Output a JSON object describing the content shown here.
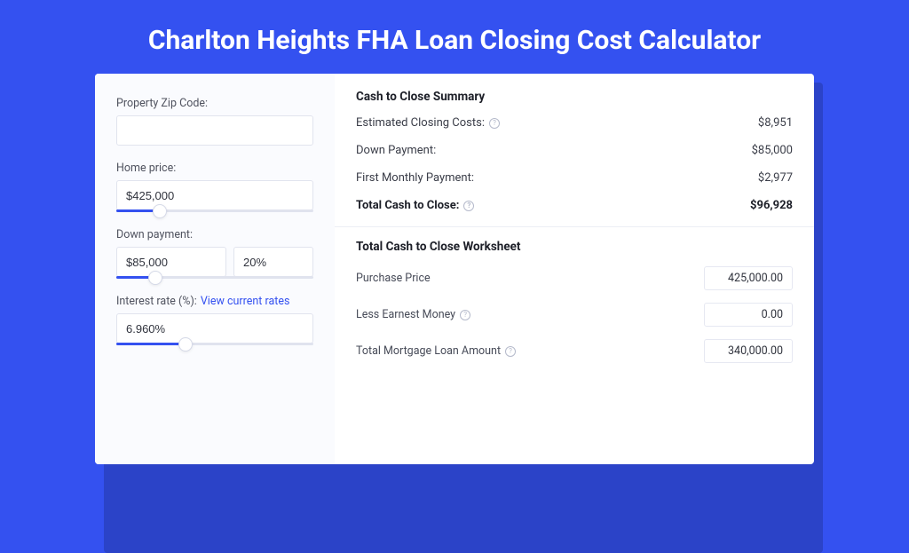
{
  "colors": {
    "page_bg": "#3451f0",
    "shadow_bg": "#2b43c8",
    "card_bg": "#ffffff",
    "left_bg": "#fafbfe",
    "border": "#e1e4ee",
    "slider_track": "#e0e3ee",
    "slider_fill": "#3451f0",
    "text_primary": "#1d1f28",
    "text_secondary": "#50535f",
    "link": "#3451f0"
  },
  "title": "Charlton Heights FHA Loan Closing Cost Calculator",
  "form": {
    "zip": {
      "label": "Property Zip Code:",
      "value": ""
    },
    "homePrice": {
      "label": "Home price:",
      "value": "$425,000",
      "slider_pct": 22
    },
    "downPayment": {
      "label": "Down payment:",
      "value": "$85,000",
      "pct": "20%",
      "slider_pct": 20
    },
    "interest": {
      "label": "Interest rate (%):",
      "link": "View current rates",
      "value": "6.960%",
      "slider_pct": 35
    }
  },
  "summary": {
    "title": "Cash to Close Summary",
    "rows": [
      {
        "label": "Estimated Closing Costs:",
        "value": "$8,951",
        "info": true
      },
      {
        "label": "Down Payment:",
        "value": "$85,000",
        "info": false
      },
      {
        "label": "First Monthly Payment:",
        "value": "$2,977",
        "info": false
      }
    ],
    "total": {
      "label": "Total Cash to Close:",
      "value": "$96,928",
      "info": true
    }
  },
  "worksheet": {
    "title": "Total Cash to Close Worksheet",
    "rows": [
      {
        "label": "Purchase Price",
        "value": "425,000.00",
        "info": false
      },
      {
        "label": "Less Earnest Money",
        "value": "0.00",
        "info": true
      },
      {
        "label": "Total Mortgage Loan Amount",
        "value": "340,000.00",
        "info": true
      }
    ]
  }
}
